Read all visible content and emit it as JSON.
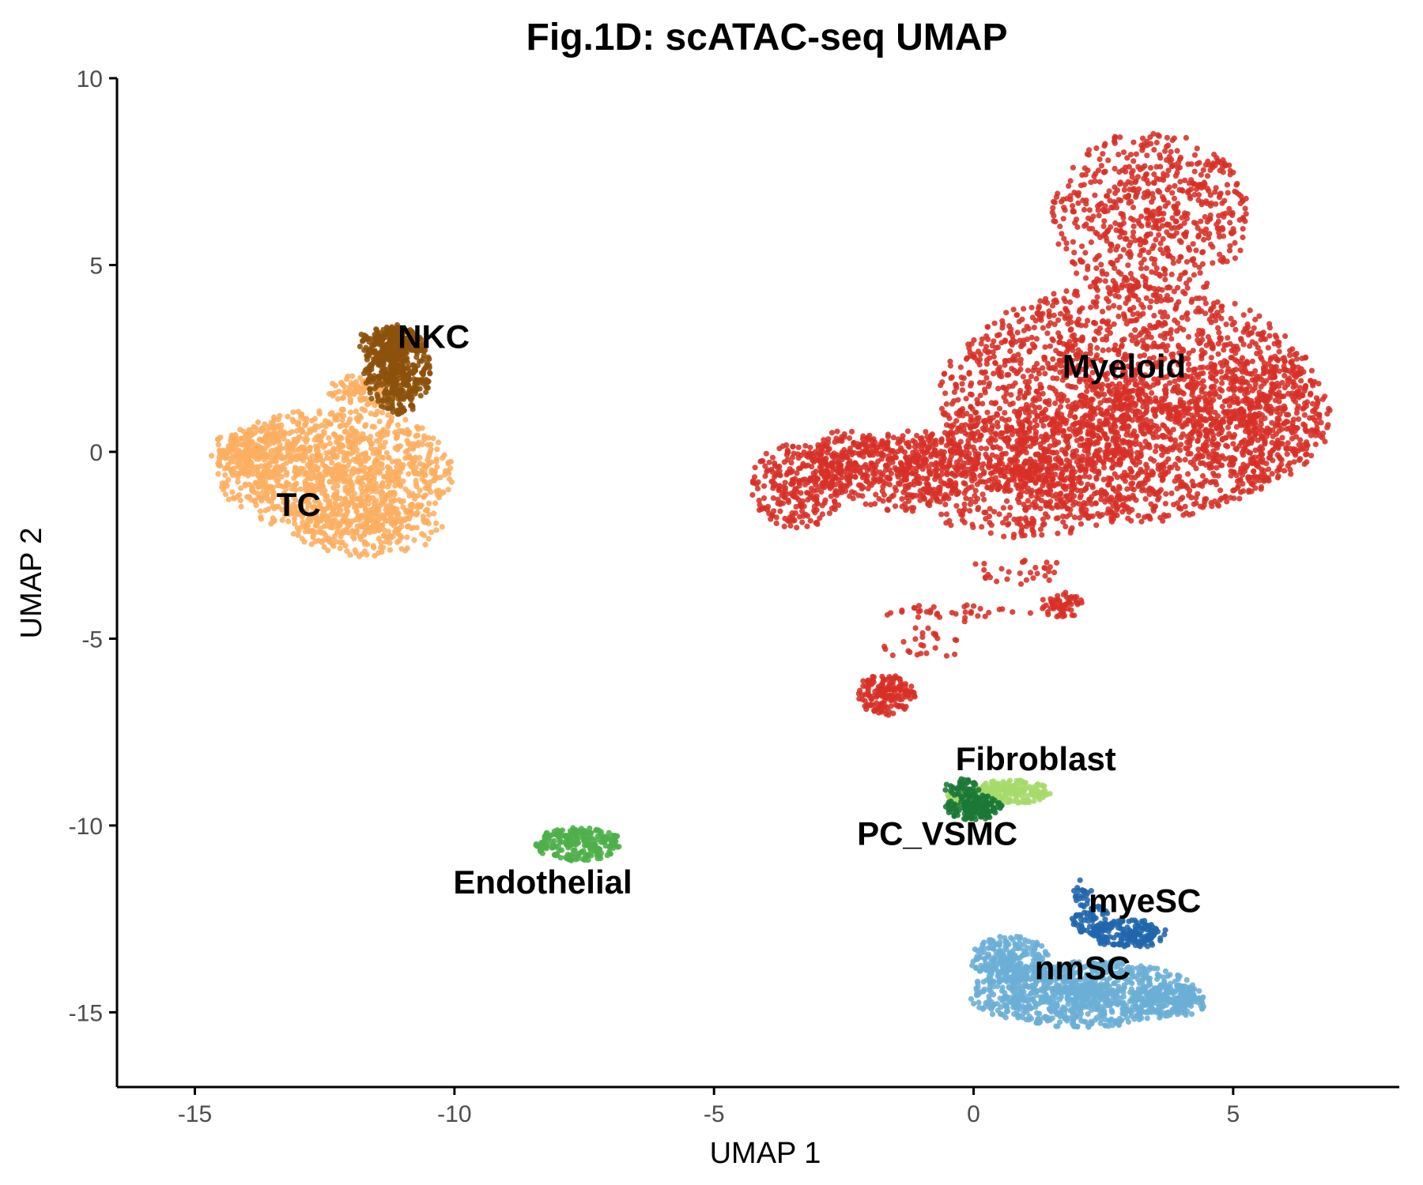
{
  "chart_data": {
    "type": "scatter",
    "title": "Fig.1D: scATAC-seq UMAP",
    "xlabel": "UMAP 1",
    "ylabel": "UMAP 2",
    "xlim": [
      -16.5,
      8.2
    ],
    "ylim": [
      -17,
      10
    ],
    "x_ticks": [
      -15,
      -10,
      -5,
      0,
      5
    ],
    "y_ticks": [
      -15,
      -10,
      -5,
      0,
      5,
      10
    ],
    "x_tick_labels": [
      "-15",
      "-10",
      "-5",
      "0",
      "5"
    ],
    "y_tick_labels": [
      "-15",
      "-10",
      "-5",
      "0",
      "5",
      "10"
    ],
    "grid": false,
    "legend": "none",
    "clusters": [
      {
        "name": "Myeloid",
        "color": "#d73027",
        "label_pos": [
          2.9,
          2.3
        ],
        "extent": {
          "x": [
            -4.3,
            7.0
          ],
          "y": [
            -7.1,
            8.8
          ]
        }
      },
      {
        "name": "NKC",
        "color": "#8c510a",
        "label_pos": [
          -10.4,
          3.1
        ],
        "extent": {
          "x": [
            -12.0,
            -10.4
          ],
          "y": [
            0.8,
            3.6
          ]
        }
      },
      {
        "name": "TC",
        "color": "#fdae61",
        "label_pos": [
          -13.0,
          -1.4
        ],
        "extent": {
          "x": [
            -14.7,
            -9.7
          ],
          "y": [
            -3.0,
            2.4
          ]
        }
      },
      {
        "name": "Endothelial",
        "color": "#4daf4a",
        "label_pos": [
          -8.3,
          -11.5
        ],
        "extent": {
          "x": [
            -8.5,
            -6.6
          ],
          "y": [
            -11.2,
            -9.9
          ]
        }
      },
      {
        "name": "Fibroblast",
        "color": "#a6d96a",
        "label_pos": [
          1.2,
          -8.2
        ],
        "extent": {
          "x": [
            -0.8,
            1.6
          ],
          "y": [
            -9.6,
            -8.5
          ]
        }
      },
      {
        "name": "PC_VSMC",
        "color": "#1b7837",
        "label_pos": [
          -0.7,
          -10.2
        ],
        "extent": {
          "x": [
            -0.6,
            0.7
          ],
          "y": [
            -9.9,
            -8.6
          ]
        }
      },
      {
        "name": "myeSC",
        "color": "#2166ac",
        "label_pos": [
          3.3,
          -12.0
        ],
        "extent": {
          "x": [
            1.7,
            3.9
          ],
          "y": [
            -14.0,
            -11.4
          ]
        }
      },
      {
        "name": "nmSC",
        "color": "#6baed6",
        "label_pos": [
          2.1,
          -13.8
        ],
        "extent": {
          "x": [
            0.0,
            4.5
          ],
          "y": [
            -15.7,
            -12.7
          ]
        }
      }
    ]
  }
}
